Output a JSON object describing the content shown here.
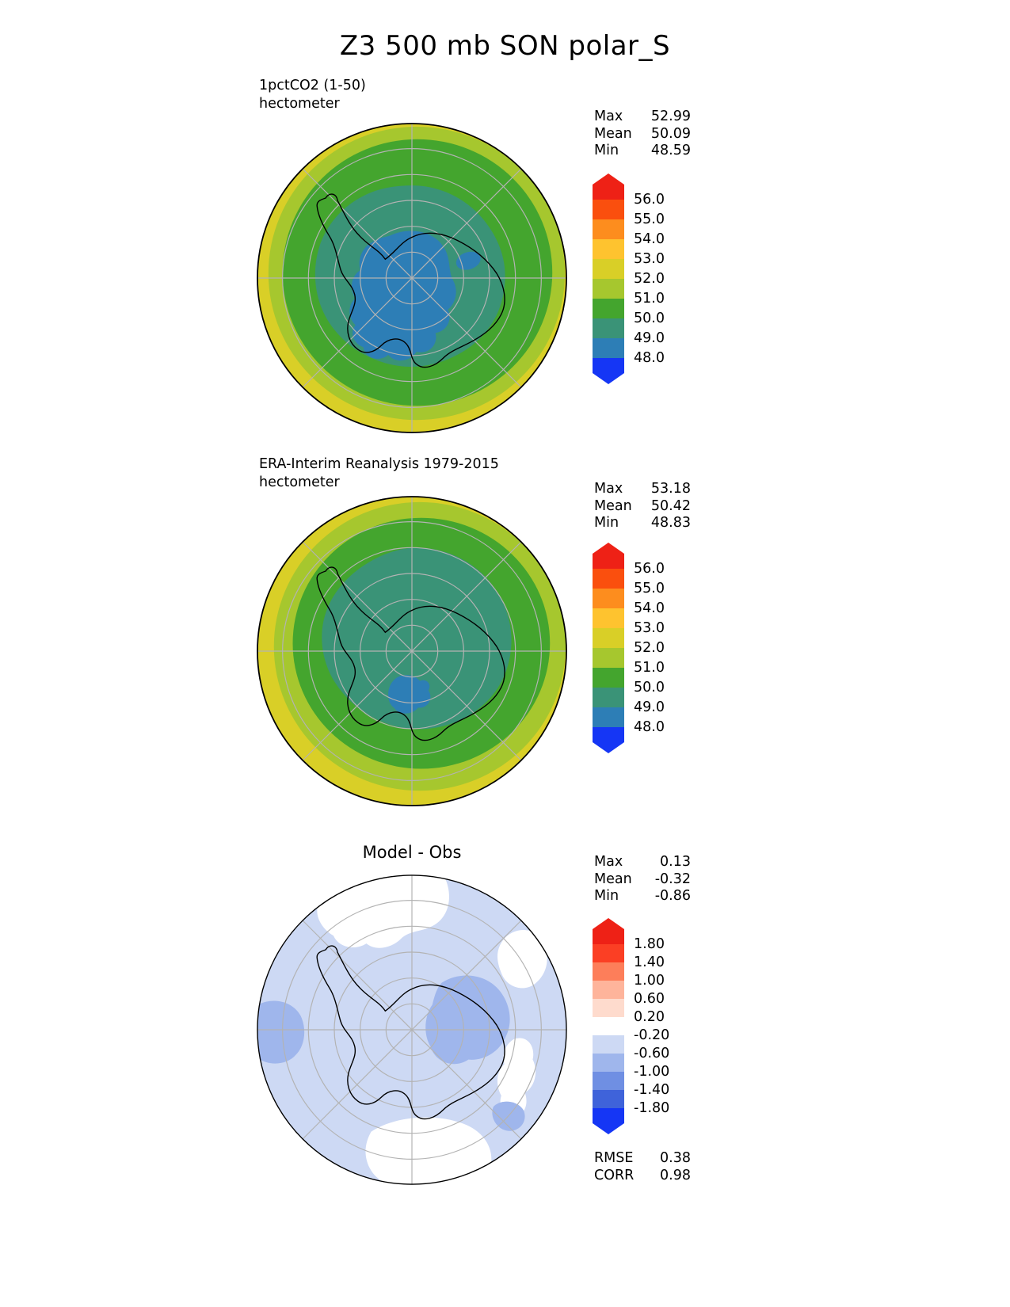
{
  "title": "Z3 500 mb SON polar_S",
  "colors": {
    "graticule": "#b3b3b3",
    "coastline": "#000000",
    "background": "#ffffff"
  },
  "panels": [
    {
      "label": "1pctCO2 (1-50)",
      "units": "hectometer",
      "stats": [
        {
          "label": "Max",
          "value": "52.99"
        },
        {
          "label": "Mean",
          "value": "50.09"
        },
        {
          "label": "Min",
          "value": "48.59"
        }
      ],
      "colorbar": {
        "ticks": [
          "56.0",
          "55.0",
          "54.0",
          "53.0",
          "52.0",
          "51.0",
          "50.0",
          "49.0",
          "48.0"
        ],
        "colors": [
          "#ee2116",
          "#fa4f0e",
          "#fd8d1e",
          "#fec32f",
          "#d9cf27",
          "#a6c72e",
          "#44a52e",
          "#3a9377",
          "#2d7eb6",
          "#1536f5"
        ]
      }
    },
    {
      "label": "ERA-Interim Reanalysis 1979-2015",
      "units": "hectometer",
      "stats": [
        {
          "label": "Max",
          "value": "53.18"
        },
        {
          "label": "Mean",
          "value": "50.42"
        },
        {
          "label": "Min",
          "value": "48.83"
        }
      ],
      "colorbar": {
        "ticks": [
          "56.0",
          "55.0",
          "54.0",
          "53.0",
          "52.0",
          "51.0",
          "50.0",
          "49.0",
          "48.0"
        ],
        "colors": [
          "#ee2116",
          "#fa4f0e",
          "#fd8d1e",
          "#fec32f",
          "#d9cf27",
          "#a6c72e",
          "#44a52e",
          "#3a9377",
          "#2d7eb6",
          "#1536f5"
        ]
      }
    },
    {
      "title": "Model - Obs",
      "stats": [
        {
          "label": "Max",
          "value": "0.13"
        },
        {
          "label": "Mean",
          "value": "-0.32"
        },
        {
          "label": "Min",
          "value": "-0.86"
        }
      ],
      "colorbar": {
        "ticks": [
          "1.80",
          "1.40",
          "1.00",
          "0.60",
          "0.20",
          "-0.20",
          "-0.60",
          "-1.00",
          "-1.40",
          "-1.80"
        ],
        "colors": [
          "#ee2116",
          "#fb3f24",
          "#fd7e5a",
          "#feb49b",
          "#fedbcd",
          "#ffffff",
          "#cdd9f4",
          "#9fb6ec",
          "#6f8fe3",
          "#3f63da",
          "#1536f5"
        ]
      },
      "metrics": [
        {
          "label": "RMSE",
          "value": "0.38"
        },
        {
          "label": "CORR",
          "value": "0.98"
        }
      ]
    }
  ],
  "chart_data": [
    {
      "type": "heatmap",
      "subtype": "filled-contour polar stereographic map",
      "title": "1pctCO2 (1-50)",
      "variable": "Z3 500 mb SON",
      "units": "hectometer",
      "projection": "south polar stereographic",
      "contour_levels": [
        48.0,
        49.0,
        50.0,
        51.0,
        52.0,
        53.0,
        54.0,
        55.0,
        56.0
      ],
      "stats": {
        "max": 52.99,
        "mean": 50.09,
        "min": 48.59
      },
      "legend_position": "right",
      "spatial_pattern": "Geopotential height rises outward from a blue minimum (48-49 hm) just off the pole toward an olive-yellow ring (52-53 hm) at the map edge; teal 49-50 hm covers most of the interior with green and yellow-green annuli outside."
    },
    {
      "type": "heatmap",
      "subtype": "filled-contour polar stereographic map",
      "title": "ERA-Interim Reanalysis 1979-2015",
      "variable": "Z3 500 mb SON",
      "units": "hectometer",
      "projection": "south polar stereographic",
      "contour_levels": [
        48.0,
        49.0,
        50.0,
        51.0,
        52.0,
        53.0,
        54.0,
        55.0,
        56.0
      ],
      "stats": {
        "max": 53.18,
        "mean": 50.42,
        "min": 48.83
      },
      "legend_position": "right",
      "spatial_pattern": "Similar ringed structure but with only a small blue (48-49 hm) pocket south of the pole; teal 49-50 hm core surrounded by green, yellow-green and olive-yellow rings toward the edge."
    },
    {
      "type": "heatmap",
      "subtype": "difference map (model minus observations)",
      "title": "Model - Obs",
      "variable": "Z3 500 mb SON bias",
      "units": "hectometer",
      "projection": "south polar stereographic",
      "contour_levels": [
        -1.8,
        -1.4,
        -1.0,
        -0.6,
        -0.2,
        0.2,
        0.6,
        1.0,
        1.4,
        1.8
      ],
      "stats": {
        "max": 0.13,
        "mean": -0.32,
        "min": -0.86,
        "rmse": 0.38,
        "corr": 0.98
      },
      "legend_position": "right",
      "spatial_pattern": "Mostly weak negative bias (light blue, -0.6 to -0.2) across the domain, a stronger -1.0 to -0.6 blob east of the pole and at the western edge, and near-zero (white) patches at the top, right and bottom of the map."
    }
  ]
}
